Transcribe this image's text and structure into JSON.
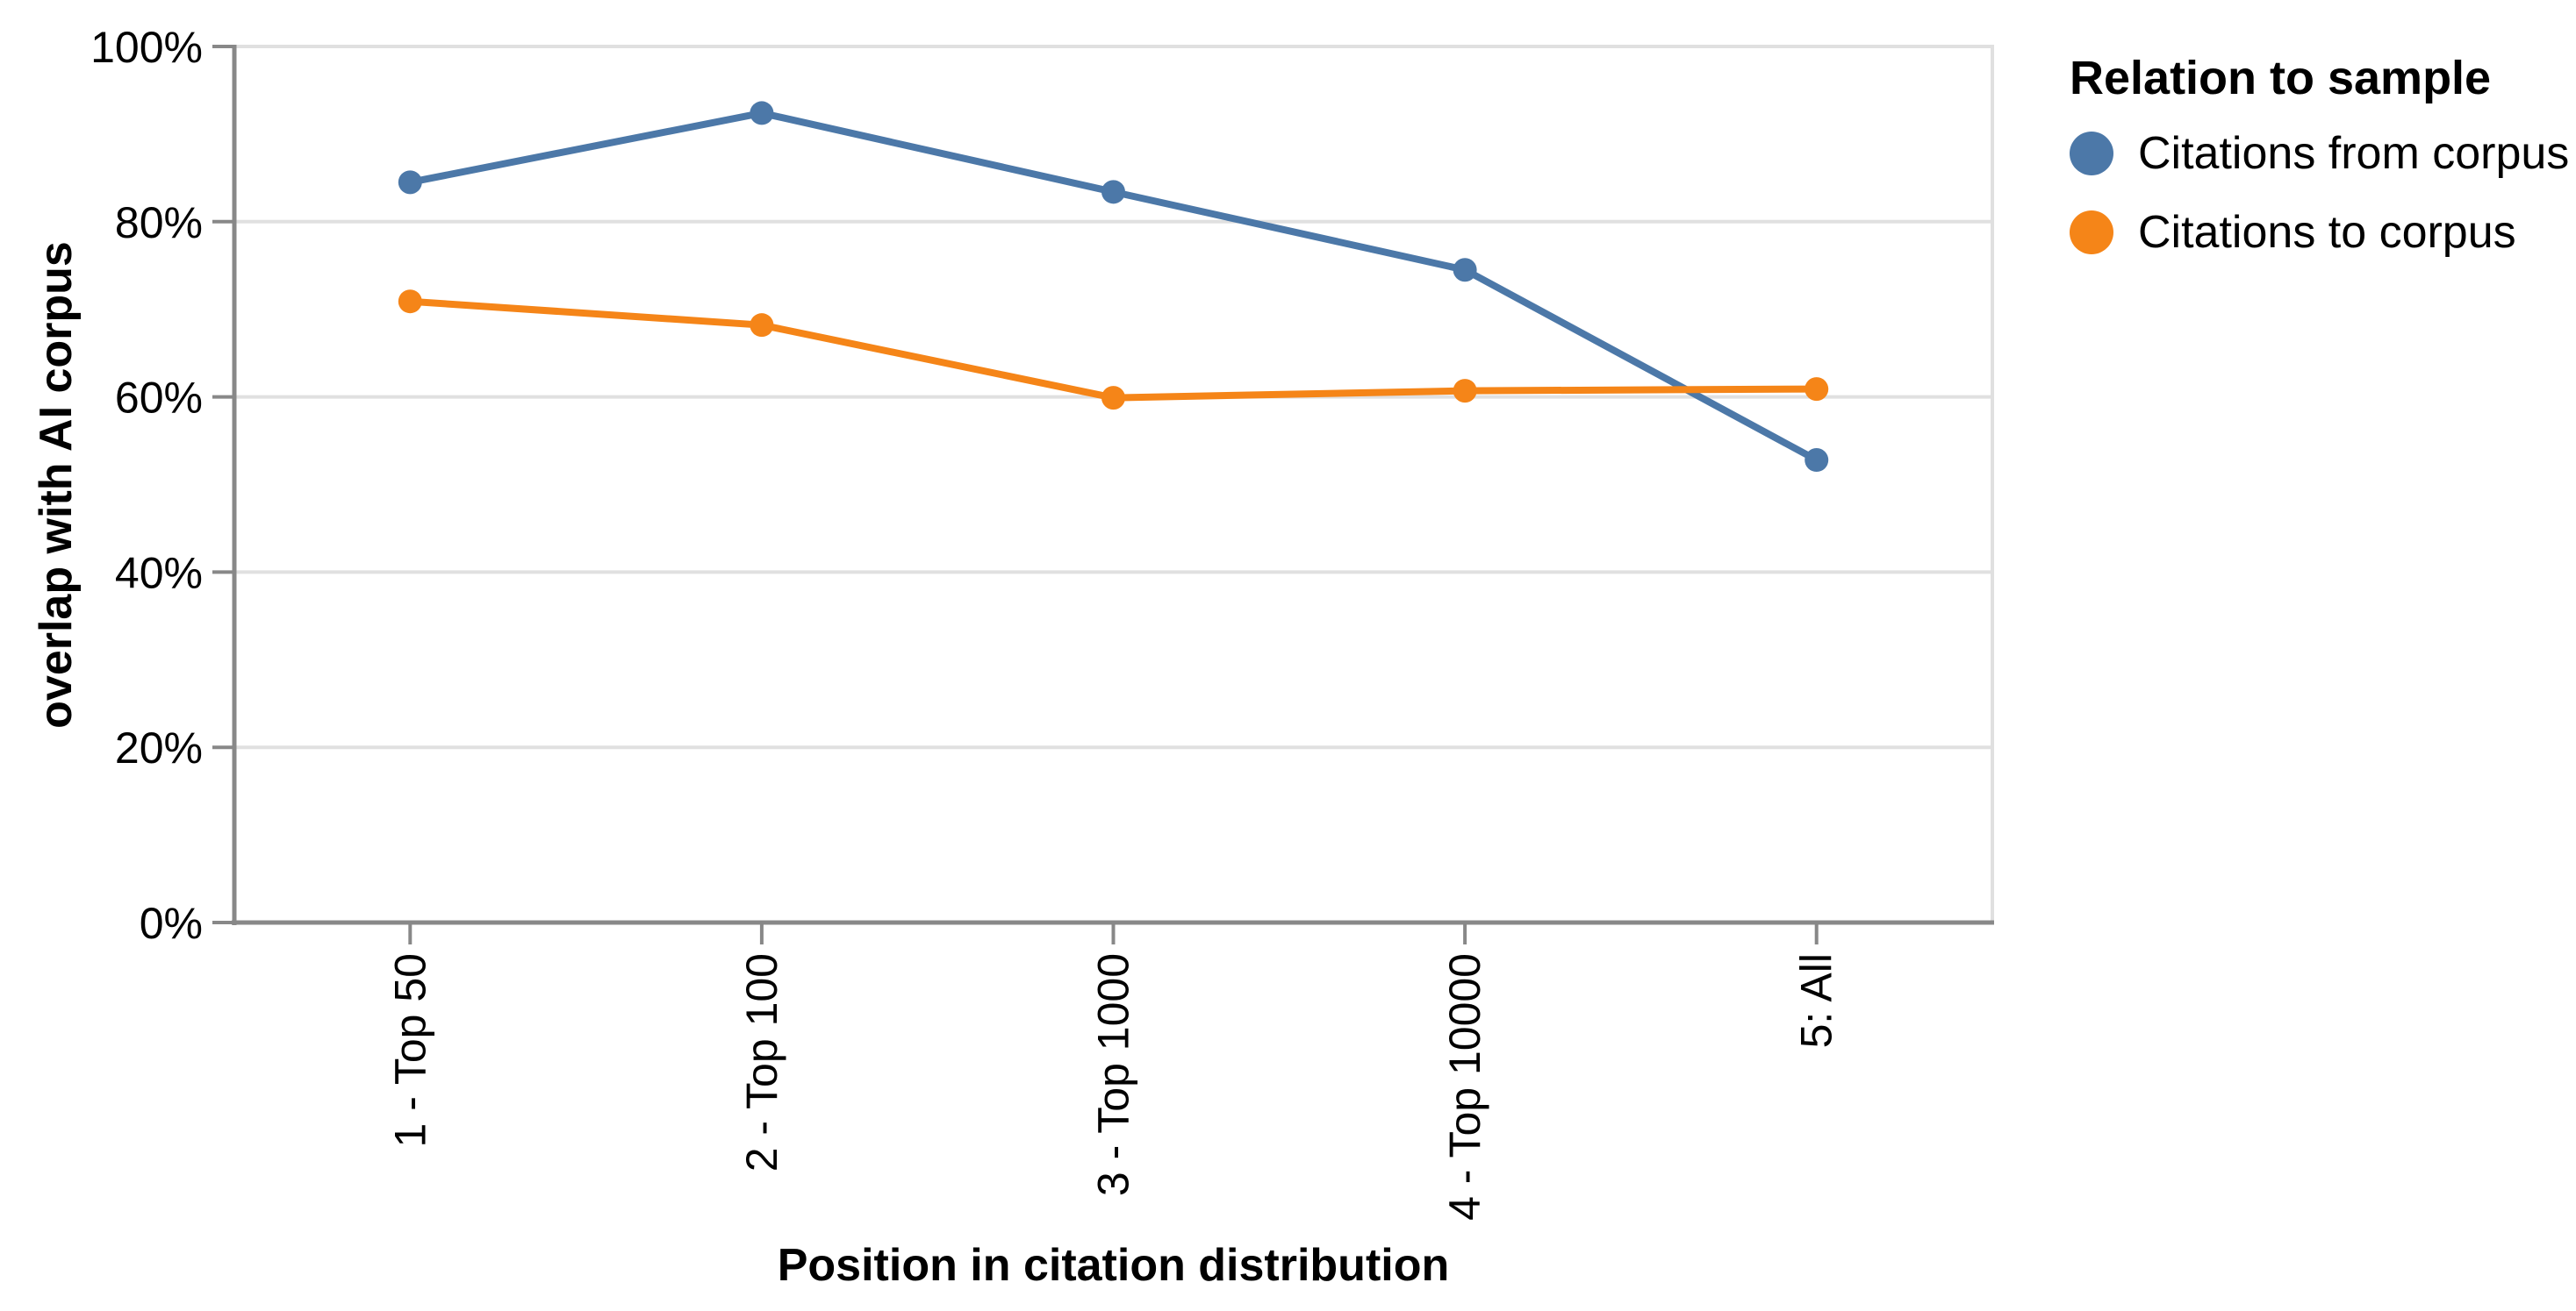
{
  "chart_data": {
    "type": "line",
    "title": "",
    "xlabel": "Position in citation distribution",
    "ylabel": "overlap with AI corpus",
    "categories": [
      "1 - Top 50",
      "2 - Top 100",
      "3 - Top 1000",
      "4 - Top 10000",
      "5: All"
    ],
    "series": [
      {
        "name": "Citations from corpus",
        "color": "#4c78a8",
        "values": [
          84.5,
          92.4,
          83.4,
          74.5,
          52.8
        ]
      },
      {
        "name": "Citations to corpus",
        "color": "#f58518",
        "values": [
          70.9,
          68.2,
          59.9,
          60.7,
          60.9
        ]
      }
    ],
    "ylim": [
      0,
      100
    ],
    "y_ticks": {
      "values": [
        0,
        20,
        40,
        60,
        80,
        100
      ],
      "labels": [
        "0%",
        "20%",
        "40%",
        "60%",
        "80%",
        "100%"
      ]
    },
    "grid": true,
    "legend": {
      "title": "Relation to sample",
      "position": "top-right"
    },
    "style": {
      "grid_color": "#e0e0e0",
      "axis_color": "#888888",
      "label_color": "#000000",
      "background": "#ffffff"
    }
  }
}
